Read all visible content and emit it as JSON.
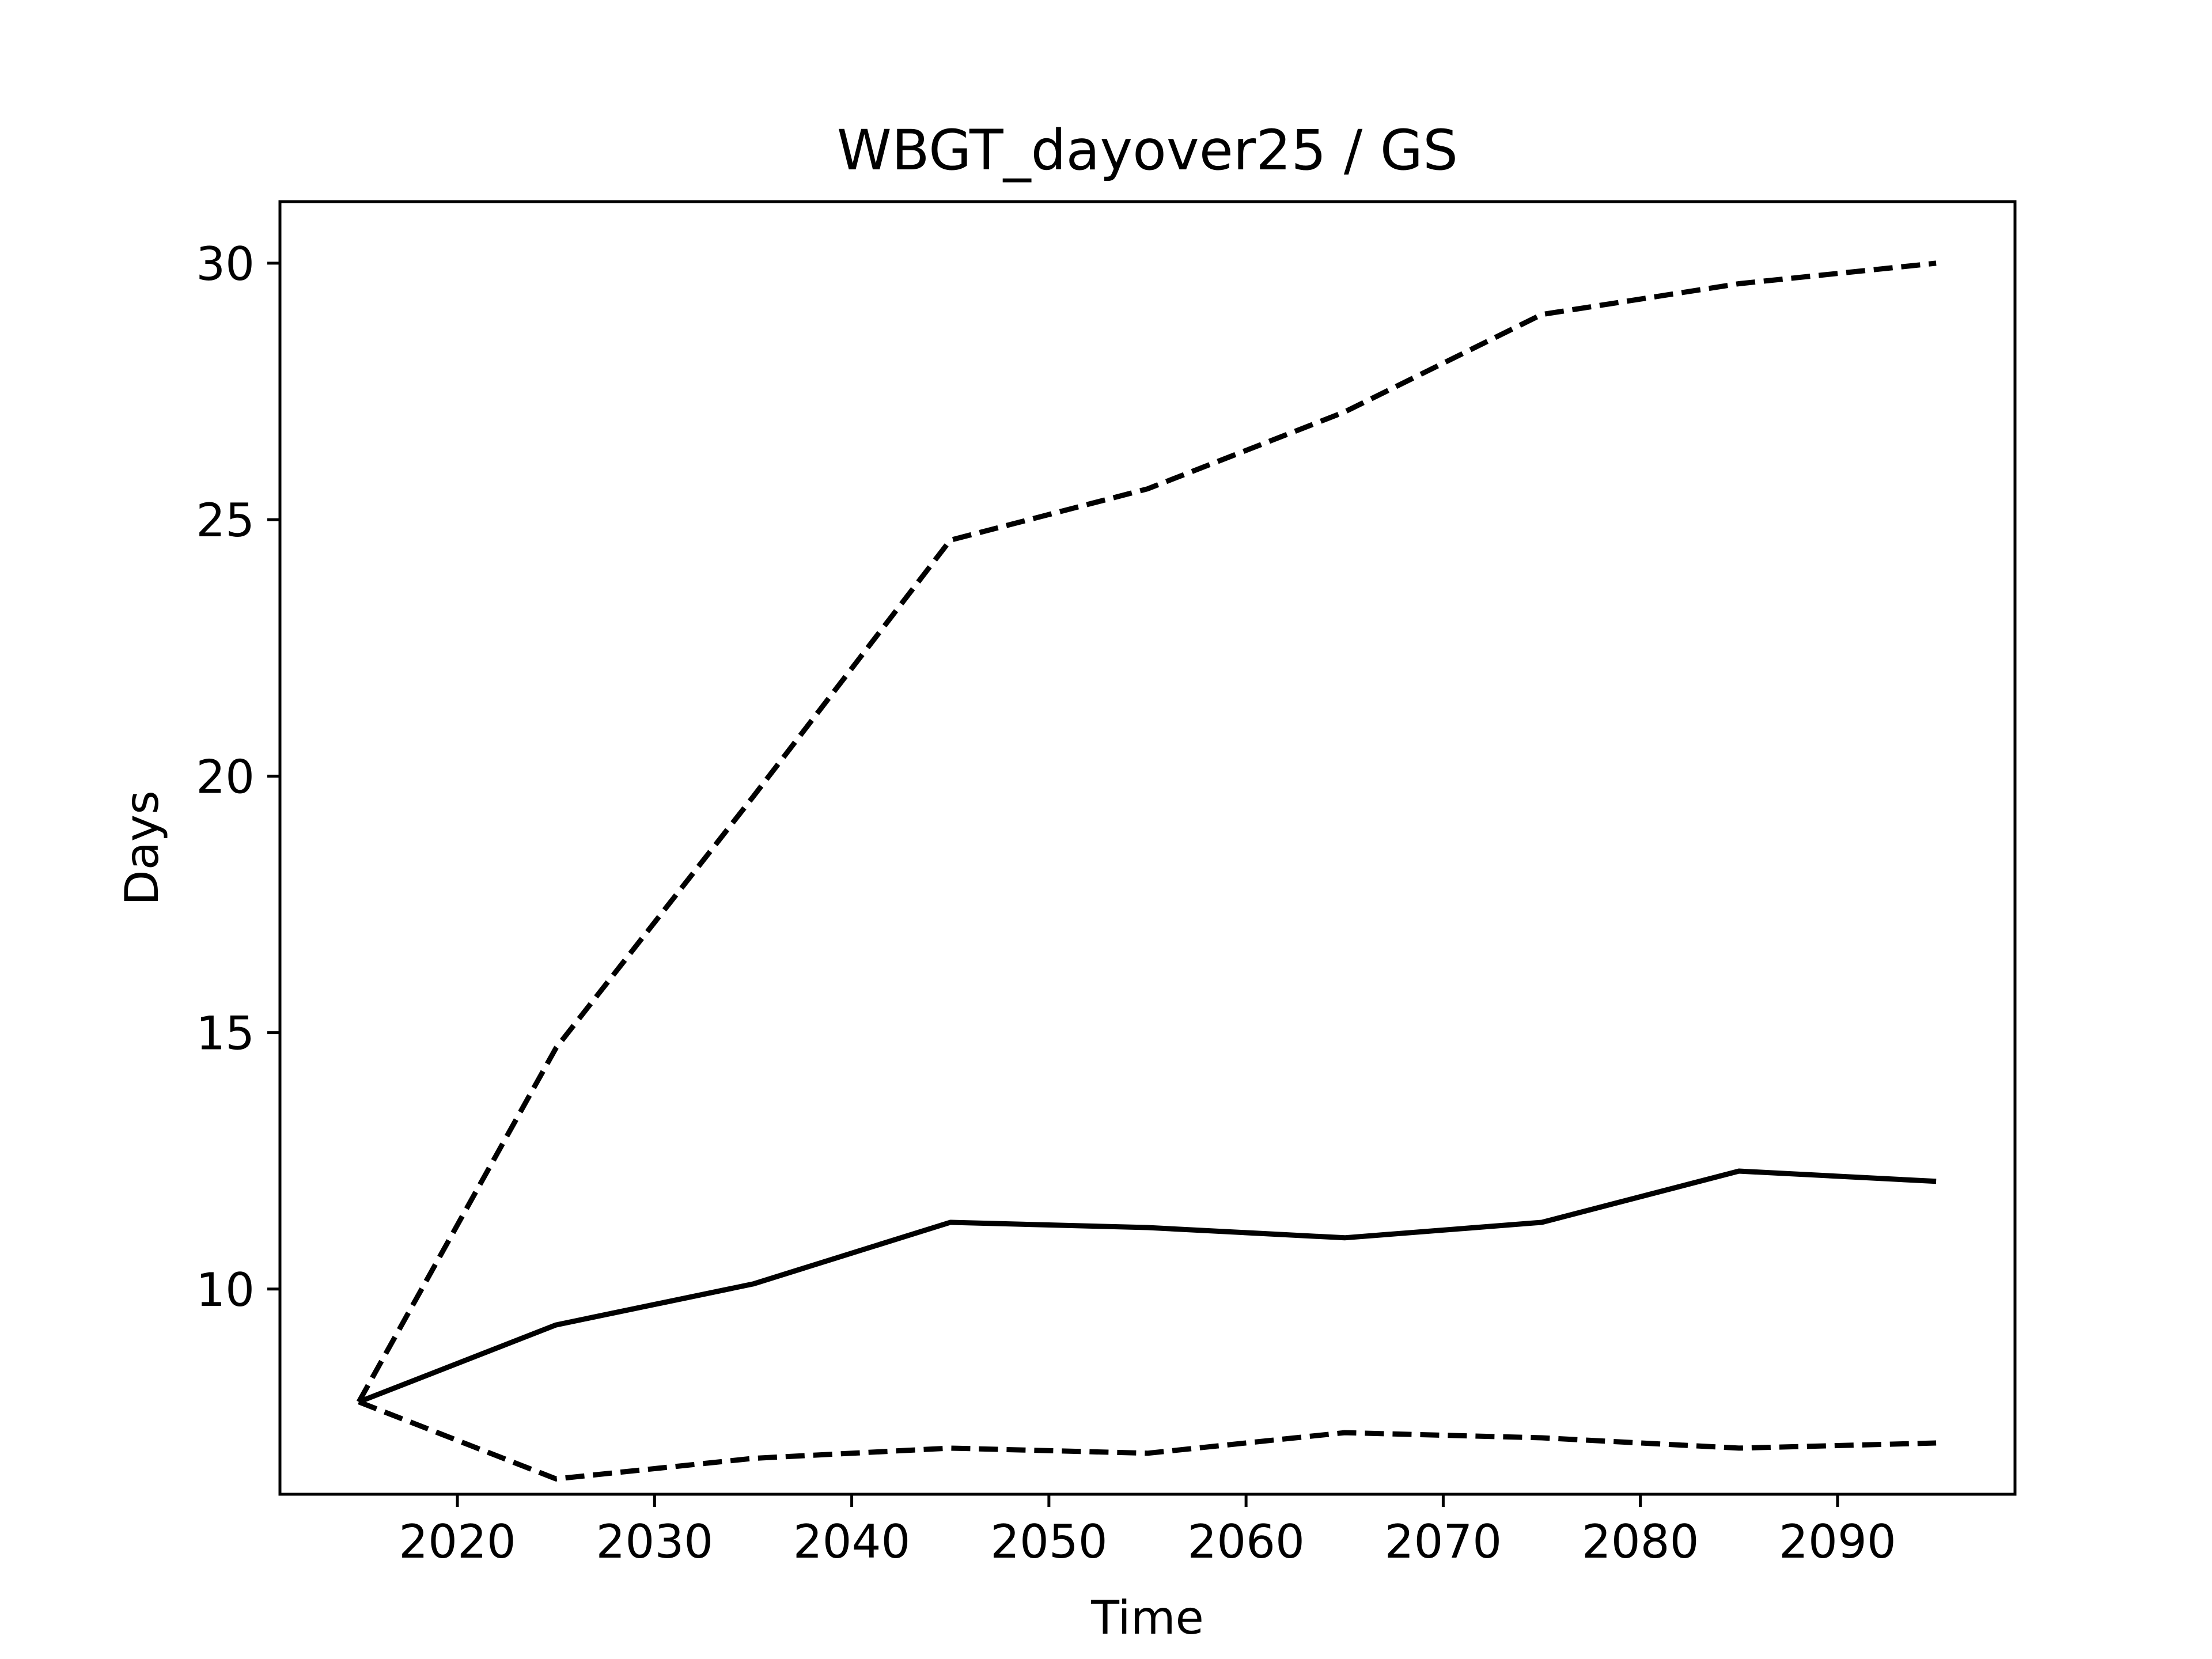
{
  "chart_data": {
    "type": "line",
    "title": "WBGT_dayover25 / GS",
    "xlabel": "Time",
    "ylabel": "Days",
    "xlim": [
      2011,
      2099
    ],
    "ylim": [
      6.0,
      31.2
    ],
    "xticks": [
      2020,
      2030,
      2040,
      2050,
      2060,
      2070,
      2080,
      2090
    ],
    "yticks": [
      10,
      15,
      20,
      25,
      30
    ],
    "grid": false,
    "x": [
      2015,
      2025,
      2035,
      2045,
      2055,
      2065,
      2075,
      2085,
      2095
    ],
    "series": [
      {
        "style": "solid",
        "color": "#000000",
        "values": [
          7.8,
          9.3,
          10.1,
          11.3,
          11.2,
          11.0,
          11.3,
          12.3,
          12.1
        ]
      },
      {
        "style": "dashed",
        "color": "#000000",
        "values": [
          7.8,
          14.7,
          19.6,
          24.6,
          25.6,
          27.1,
          29.0,
          29.6,
          30.0
        ]
      },
      {
        "style": "dashed",
        "color": "#000000",
        "values": [
          7.8,
          6.3,
          6.7,
          6.9,
          6.8,
          7.2,
          7.1,
          6.9,
          7.0
        ]
      }
    ]
  }
}
